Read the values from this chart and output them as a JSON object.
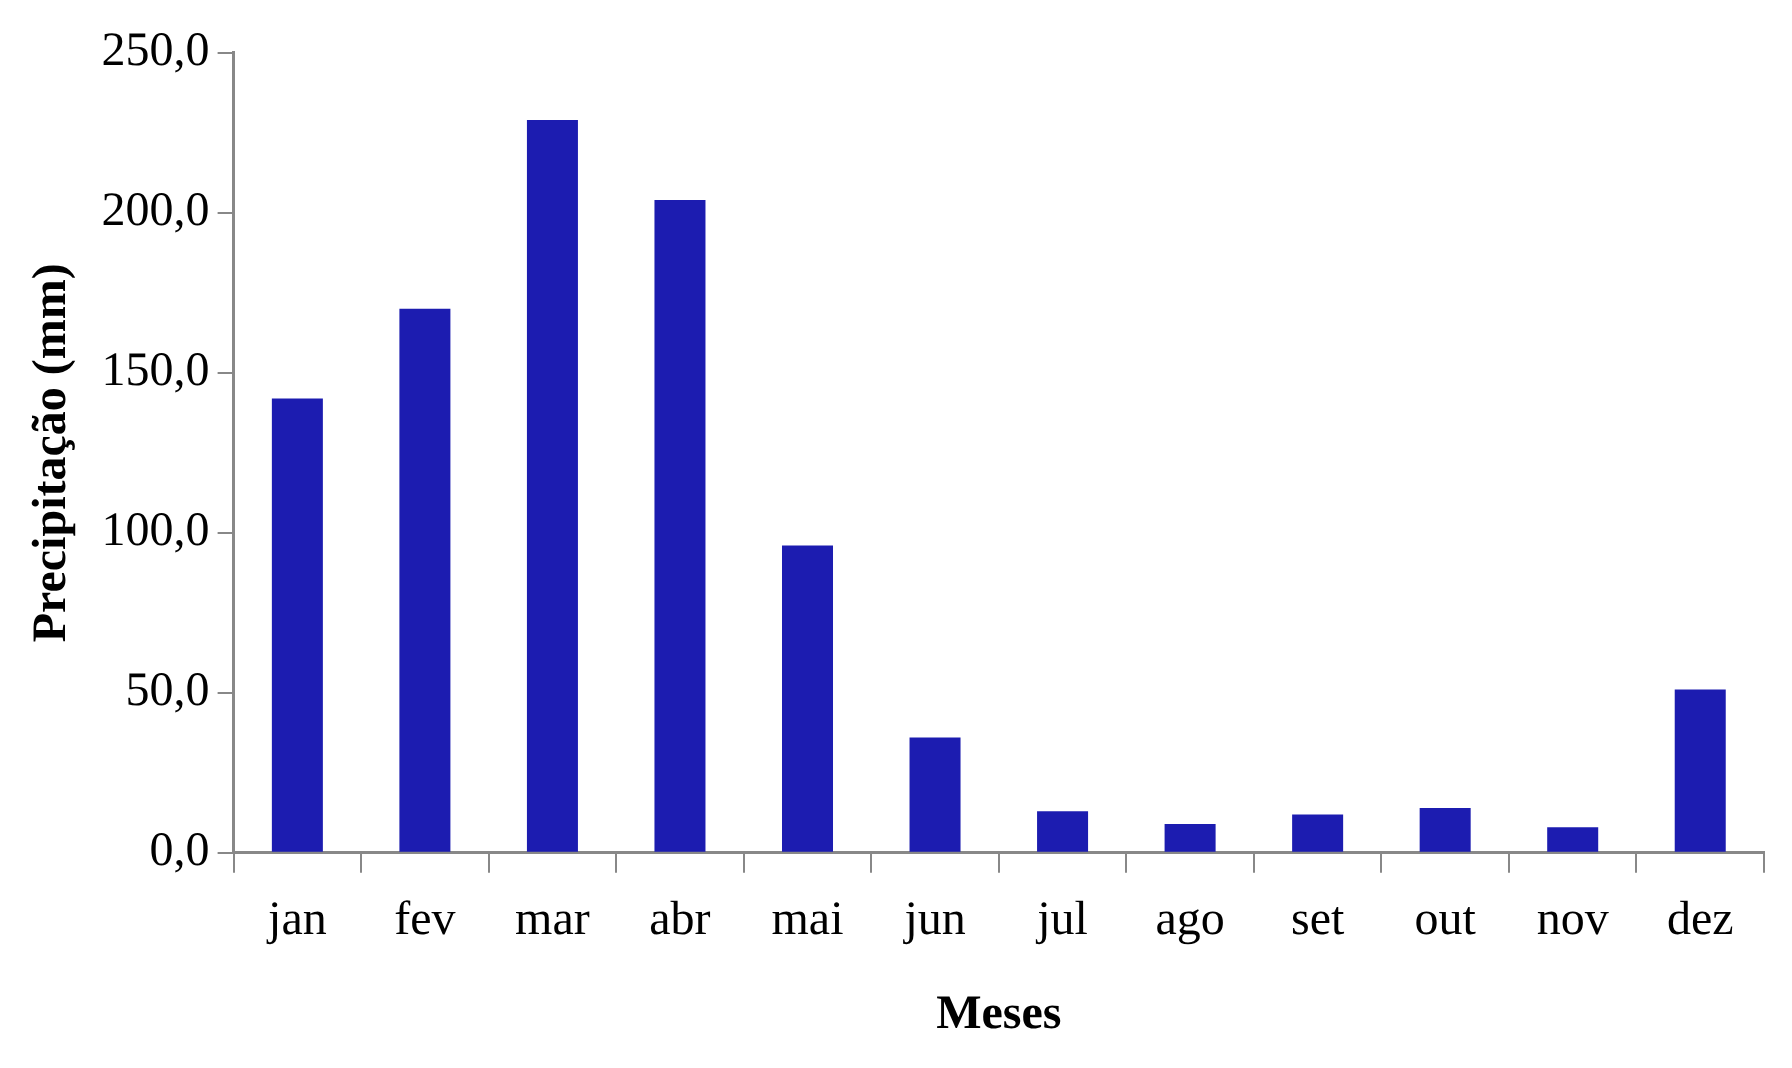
{
  "chart_data": {
    "type": "bar",
    "xlabel": "Meses",
    "ylabel": "Precipitação (mm)",
    "categories": [
      "jan",
      "fev",
      "mar",
      "abr",
      "mai",
      "jun",
      "jul",
      "ago",
      "set",
      "out",
      "nov",
      "dez"
    ],
    "values": [
      142,
      170,
      229,
      204,
      96,
      36,
      13,
      9,
      12,
      14,
      8,
      51
    ],
    "color": "#1c1cb0",
    "ylim": [
      0,
      250
    ],
    "yticks": [
      {
        "value": 0,
        "label": "0,0"
      },
      {
        "value": 50,
        "label": "50,0"
      },
      {
        "value": 100,
        "label": "100,0"
      },
      {
        "value": 150,
        "label": "150,0"
      },
      {
        "value": 200,
        "label": "200,0"
      },
      {
        "value": 250,
        "label": "250,0"
      }
    ],
    "grid": false,
    "legend": false
  }
}
